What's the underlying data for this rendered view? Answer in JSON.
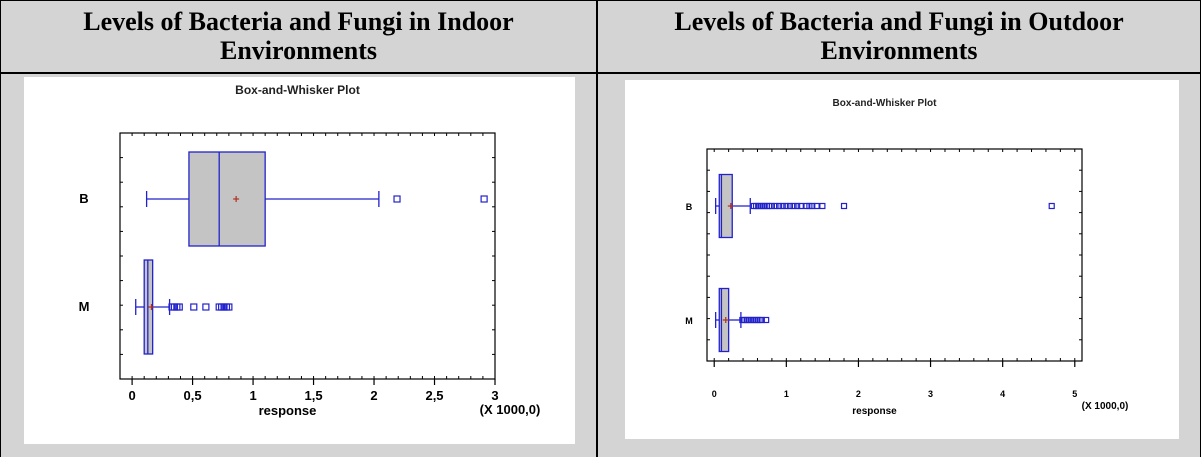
{
  "table": {
    "left_title": "Levels of Bacteria and Fungi in Indoor Environments",
    "right_title": "Levels of Bacteria and Fungi in Outdoor Environments"
  },
  "chart_data": [
    {
      "type": "boxplot",
      "title": "Box-and-Whisker  Plot",
      "xlabel": "response",
      "x_multiplier_label": "(X 1000,0)",
      "xlim": [
        -0.1,
        3.0
      ],
      "xticks": [
        0,
        0.5,
        1,
        1.5,
        2,
        2.5,
        3
      ],
      "xtick_labels": [
        "0",
        "0,5",
        "1",
        "1,5",
        "2",
        "2,5",
        "3"
      ],
      "grid": false,
      "groups": [
        {
          "name": "B",
          "whisker_low": 0.12,
          "q1": 0.47,
          "median": 0.72,
          "q3": 1.1,
          "whisker_high": 2.04,
          "mean": 0.86,
          "outliers": [
            2.19,
            2.91
          ]
        },
        {
          "name": "M",
          "whisker_low": 0.03,
          "q1": 0.1,
          "median": 0.13,
          "q3": 0.17,
          "whisker_high": 0.31,
          "mean": 0.16,
          "outliers": [
            0.33,
            0.35,
            0.37,
            0.39,
            0.51,
            0.61,
            0.72,
            0.74,
            0.76,
            0.78,
            0.8
          ]
        }
      ]
    },
    {
      "type": "boxplot",
      "title": "Box-and-Whisker Plot",
      "xlabel": "response",
      "x_multiplier_label": "(X 1000,0)",
      "xlim": [
        -0.1,
        5.1
      ],
      "xticks": [
        0,
        1,
        2,
        3,
        4,
        5
      ],
      "xtick_labels": [
        "0",
        "1",
        "2",
        "3",
        "4",
        "5"
      ],
      "grid": false,
      "groups": [
        {
          "name": "B",
          "whisker_low": 0.02,
          "q1": 0.07,
          "median": 0.1,
          "q3": 0.25,
          "whisker_high": 0.5,
          "mean": 0.23,
          "outliers": [
            0.55,
            0.58,
            0.61,
            0.64,
            0.67,
            0.7,
            0.73,
            0.76,
            0.8,
            0.85,
            0.9,
            0.95,
            1.0,
            1.05,
            1.1,
            1.15,
            1.2,
            1.28,
            1.32,
            1.36,
            1.42,
            1.5,
            1.8,
            4.68
          ]
        },
        {
          "name": "M",
          "whisker_low": 0.02,
          "q1": 0.07,
          "median": 0.1,
          "q3": 0.2,
          "whisker_high": 0.37,
          "mean": 0.16,
          "outliers": [
            0.39,
            0.42,
            0.45,
            0.48,
            0.51,
            0.54,
            0.57,
            0.6,
            0.63,
            0.66,
            0.72
          ]
        }
      ]
    }
  ]
}
